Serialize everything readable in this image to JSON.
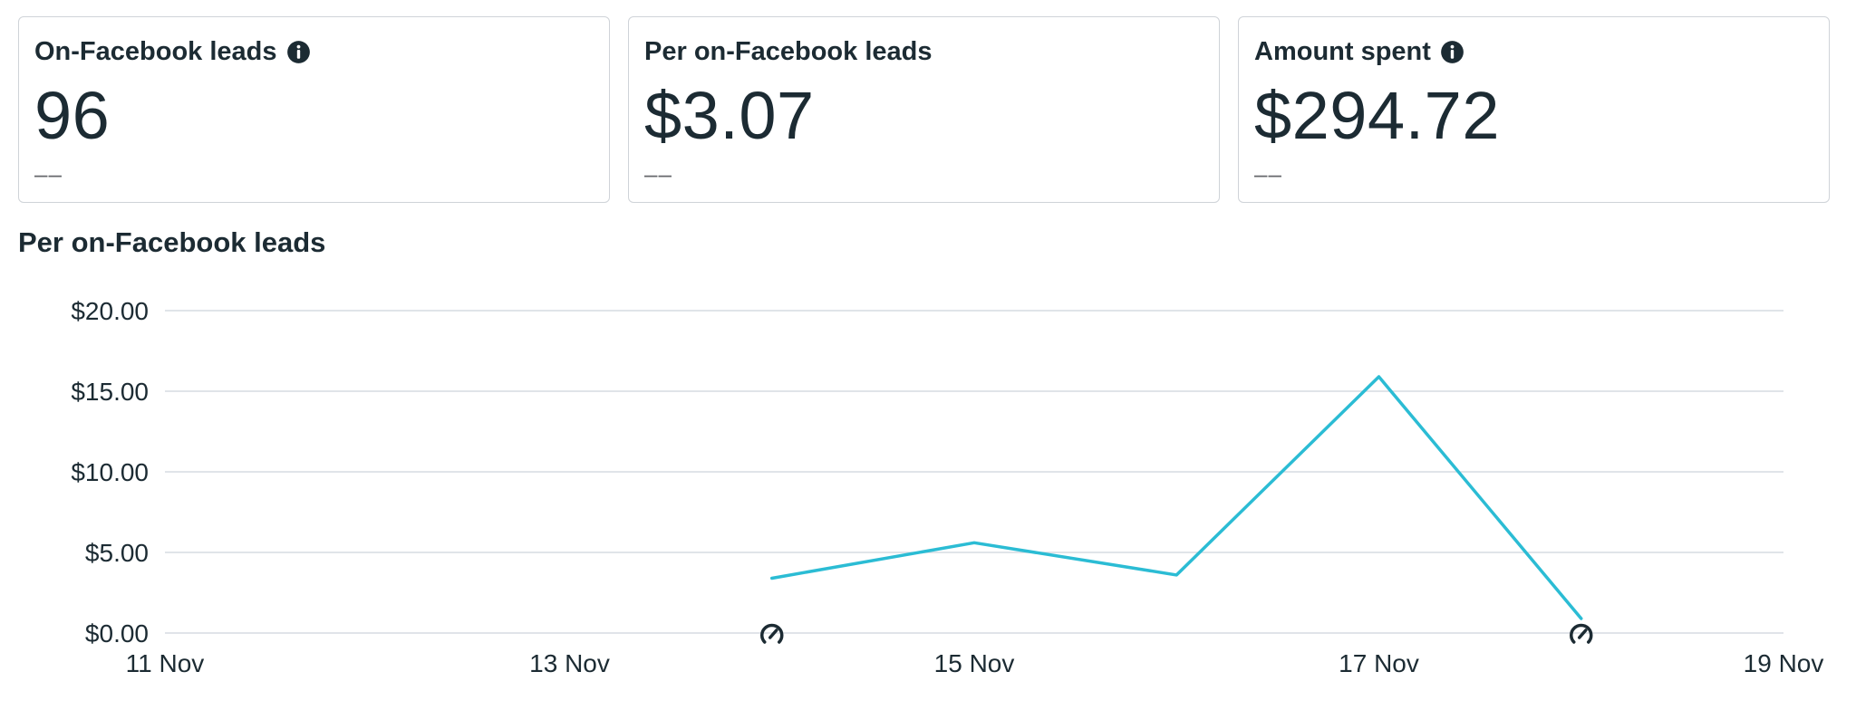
{
  "cards": [
    {
      "title": "On-Facebook leads",
      "has_info": true,
      "value": "96",
      "delta": "––"
    },
    {
      "title": "Per on-Facebook leads",
      "has_info": false,
      "value": "$3.07",
      "delta": "––"
    },
    {
      "title": "Amount spent",
      "has_info": true,
      "value": "$294.72",
      "delta": "––"
    }
  ],
  "chart_title": "Per on-Facebook leads",
  "chart_data": {
    "type": "line",
    "xlim": [
      "11 Nov",
      "19 Nov"
    ],
    "x_ticks": [
      "11 Nov",
      "13 Nov",
      "15 Nov",
      "17 Nov",
      "19 Nov"
    ],
    "y_ticks": [
      "$0.00",
      "$5.00",
      "$10.00",
      "$15.00",
      "$20.00"
    ],
    "ylim": [
      0,
      20
    ],
    "grid": true,
    "series": [
      {
        "color": "#2bbcd4",
        "points": [
          {
            "x": "14 Nov",
            "y": 3.4
          },
          {
            "x": "15 Nov",
            "y": 5.6
          },
          {
            "x": "16 Nov",
            "y": 3.6
          },
          {
            "x": "17 Nov",
            "y": 15.9
          },
          {
            "x": "18 Nov",
            "y": 0.9
          }
        ]
      }
    ],
    "markers": [
      {
        "x": "14 Nov",
        "icon": "gauge-icon"
      },
      {
        "x": "18 Nov",
        "icon": "gauge-icon"
      }
    ]
  },
  "colors": {
    "line": "#2bbcd4",
    "grid": "#d5dbe2",
    "text": "#1c2b33"
  }
}
